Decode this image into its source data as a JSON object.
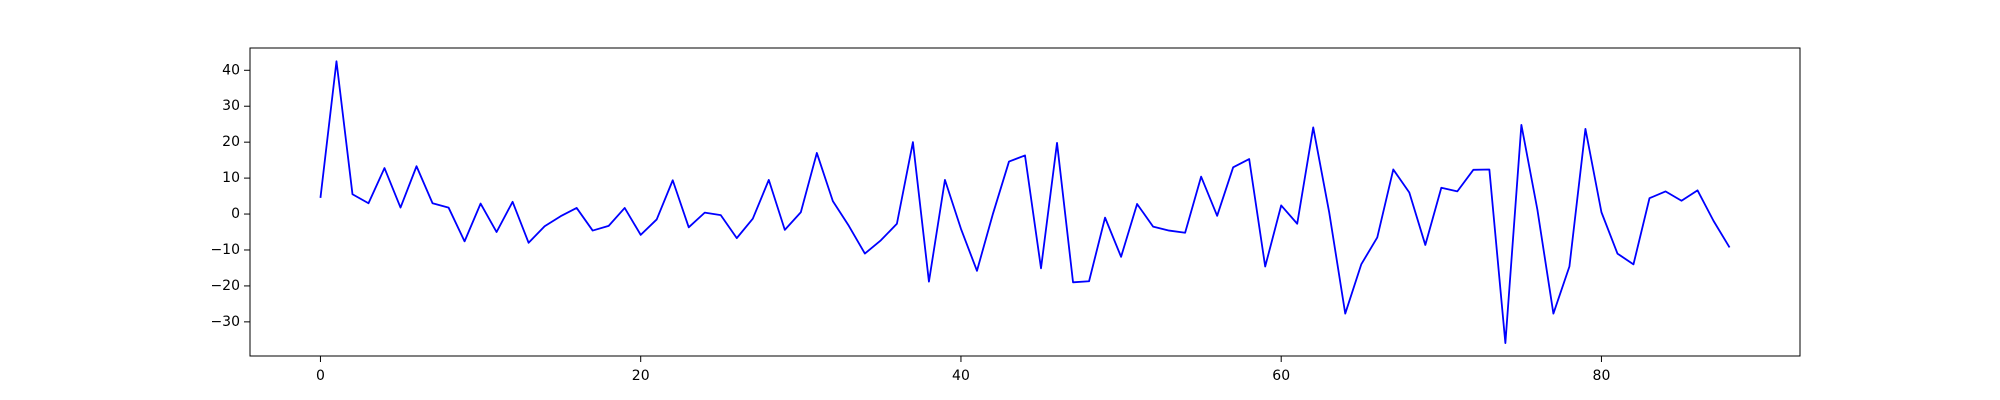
{
  "chart_data": {
    "type": "line",
    "title": "",
    "xlabel": "",
    "ylabel": "",
    "xlim": [
      -4.4,
      92.4
    ],
    "ylim": [
      -39.5,
      46.2
    ],
    "x_ticks": [
      0,
      20,
      40,
      60,
      80
    ],
    "y_ticks": [
      -30,
      -20,
      -10,
      0,
      10,
      20,
      30,
      40
    ],
    "grid": false,
    "legend": "none",
    "line_color": "#0000ff",
    "series": [
      {
        "values": [
          4.5,
          42.5,
          5.5,
          3.0,
          12.8,
          1.8,
          13.3,
          3.0,
          1.8,
          -7.6,
          2.9,
          -5.0,
          3.4,
          -8.0,
          -3.4,
          -0.6,
          1.7,
          -4.6,
          -3.3,
          1.7,
          -5.8,
          -1.5,
          9.4,
          -3.7,
          0.4,
          -0.3,
          -6.7,
          -1.3,
          9.5,
          -4.4,
          0.5,
          17.0,
          3.6,
          -3.3,
          -11.0,
          -7.3,
          -2.7,
          20.0,
          -18.8,
          9.5,
          -4.1,
          -15.8,
          0.1,
          14.6,
          16.3,
          -15.1,
          19.8,
          -19.0,
          -18.7,
          -1.0,
          -11.9,
          2.8,
          -3.5,
          -4.6,
          -5.2,
          10.4,
          -0.5,
          13.0,
          15.3,
          -14.6,
          2.4,
          -2.7,
          24.1,
          0.4,
          -27.7,
          -14.0,
          -6.5,
          12.4,
          6.0,
          -8.6,
          7.3,
          6.3,
          12.3,
          12.4,
          -35.9,
          24.8,
          1.2,
          -27.7,
          -14.6,
          23.7,
          0.5,
          -11.0,
          -14.0,
          4.4,
          6.3,
          3.7,
          6.6,
          -1.9,
          -9.3
        ]
      }
    ]
  }
}
